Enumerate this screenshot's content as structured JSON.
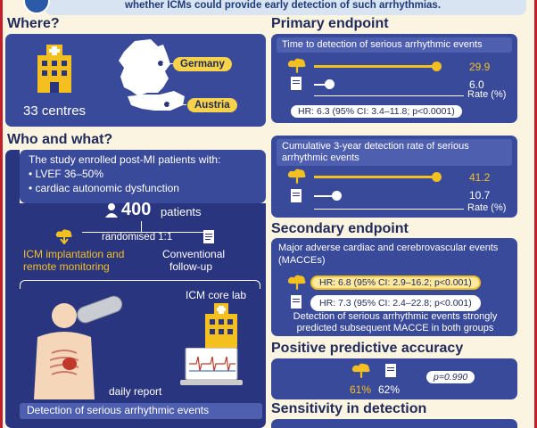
{
  "banner": {
    "text": "whether ICMs could provide early detection of such arrhythmias."
  },
  "where": {
    "title": "Where?",
    "centres": "33 centres",
    "countries": [
      "Germany",
      "Austria"
    ]
  },
  "who": {
    "title": "Who and what?",
    "intro": "The study enrolled post-MI patients with:",
    "criteria": [
      "• LVEF 36–50%",
      "• cardiac autonomic dysfunction"
    ],
    "patients_num": "400",
    "patients_label": "patients",
    "randomised": "randomised 1:1",
    "arm1": [
      "ICM implantation and",
      "remote monitoring"
    ],
    "arm2": [
      "Conventional",
      "follow-up"
    ],
    "core_lab": "ICM core lab",
    "daily_report": "daily report",
    "detection": "Detection of serious arrhythmic events"
  },
  "primary": {
    "title": "Primary endpoint",
    "label": "Time to detection of serious arrhythmic events",
    "icm_value": "29.9",
    "conv_value": "6.0",
    "rate_label": "Rate (%)",
    "hr": "HR: 6.3 (95% CI: 3.4–11.8; p<0.0001)"
  },
  "cumulative": {
    "label": "Cumulative 3-year detection rate of serious arrhythmic events",
    "icm_value": "41.2",
    "conv_value": "10.7",
    "rate_label": "Rate (%)"
  },
  "secondary": {
    "title": "Secondary endpoint",
    "label": "Major adverse cardiac and cerebrovascular events (MACCEs)",
    "hr_icm": "HR: 6.8 (95% CI: 2.9–16.2; p<0.001)",
    "hr_conv": "HR: 7.3 (95% CI: 2.4–22.8; p<0.001)",
    "note": "Detection of serious arrhythmic events strongly predicted subsequent MACCE in both groups"
  },
  "ppa": {
    "title": "Positive predictive accuracy",
    "icm": "61%",
    "conv": "62%",
    "p": "p=0.990"
  },
  "sensitivity": {
    "title": "Sensitivity in detection"
  },
  "colors": {
    "accent": "#f4c020",
    "panel": "#3a4a9a",
    "frame": "#c41e2a"
  }
}
